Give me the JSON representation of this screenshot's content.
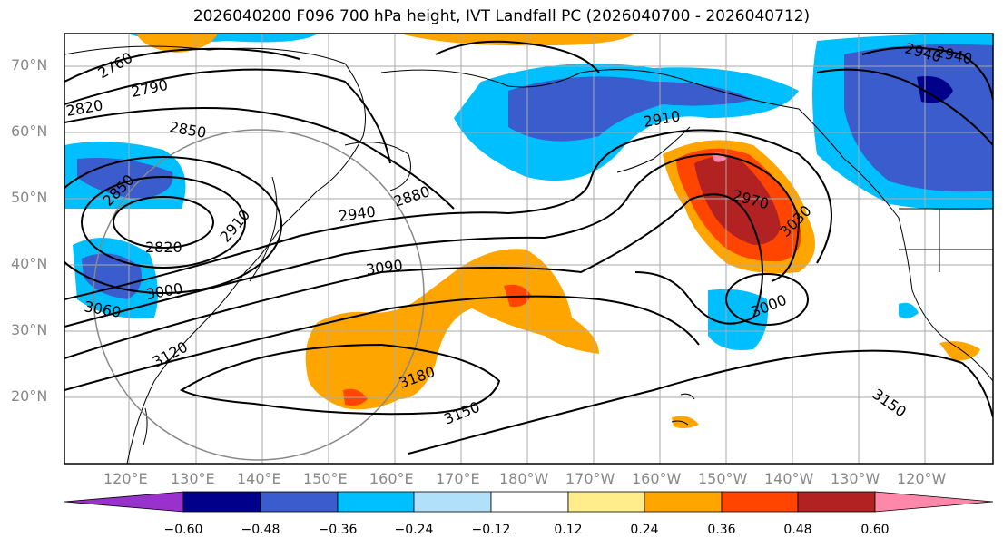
{
  "title": "2026040200 F096 700 hPa height, IVT Landfall PC (2026040700 - 2026040712)",
  "lat_labels": [
    "70°N",
    "60°N",
    "50°N",
    "40°N",
    "30°N",
    "20°N"
  ],
  "lon_labels": [
    "120°E",
    "130°E",
    "140°E",
    "150°E",
    "160°E",
    "170°E",
    "180°W",
    "170°W",
    "160°W",
    "150°W",
    "140°W",
    "130°W",
    "120°W"
  ],
  "contour_labels": [
    "2760",
    "2790",
    "2820",
    "2850",
    "2850",
    "2820",
    "2880",
    "2910",
    "2940",
    "3090",
    "3000",
    "3060",
    "3120",
    "3180",
    "3150",
    "2910",
    "2970",
    "3030",
    "3000",
    "3150",
    "2940",
    "2940"
  ],
  "colorbar": {
    "ticks": [
      "−0.60",
      "−0.48",
      "−0.36",
      "−0.24",
      "−0.12",
      "0.12",
      "0.24",
      "0.36",
      "0.48",
      "0.60"
    ],
    "colors": [
      "#9932cc",
      "#00008b",
      "#3a5ccc",
      "#00bfff",
      "#b0e0fa",
      "#ffffff",
      "#ffec8b",
      "#ffa500",
      "#ff4500",
      "#b22222",
      "#ff88aa"
    ]
  }
}
